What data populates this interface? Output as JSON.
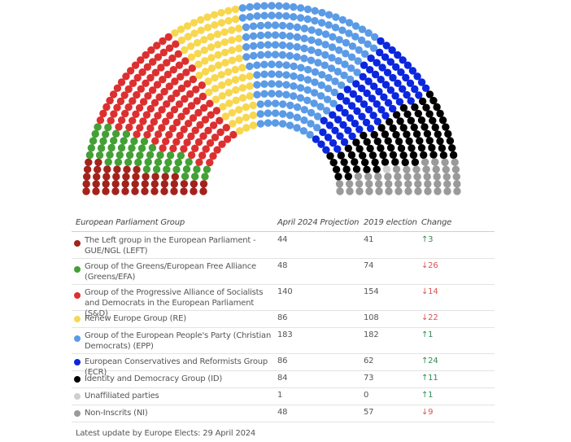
{
  "chart_data": {
    "type": "hemicycle",
    "total_seats": 720,
    "table": {
      "headers": {
        "group": "European Parliament Group",
        "projection": "April 2024 Projection",
        "election2019": "2019 election",
        "change": "Change"
      },
      "rows": [
        {
          "key": "left",
          "name": "The Left group in the European Parliament - GUE/NGL (LEFT)",
          "projection": 44,
          "e2019": 41,
          "change": "↑3",
          "dir": "up",
          "color": "#a3231c"
        },
        {
          "key": "greens",
          "name": "Group of the Greens/European Free Alliance (Greens/EFA)",
          "projection": 48,
          "e2019": 74,
          "change": "↓26",
          "dir": "down",
          "color": "#43a035"
        },
        {
          "key": "sd",
          "name": "Group of the Progressive Alliance of Socialists and Democrats in the European Parliament (S&D)",
          "projection": 140,
          "e2019": 154,
          "change": "↓14",
          "dir": "down",
          "color": "#dc3030"
        },
        {
          "key": "re",
          "name": "Renew Europe Group (RE)",
          "projection": 86,
          "e2019": 108,
          "change": "↓22",
          "dir": "down",
          "color": "#f7d750"
        },
        {
          "key": "epp",
          "name": "Group of the European People's Party (Christian Democrats) (EPP)",
          "projection": 183,
          "e2019": 182,
          "change": "↑1",
          "dir": "up",
          "color": "#5b9be6"
        },
        {
          "key": "ecr",
          "name": "European Conservatives and Reformists Group (ECR)",
          "projection": 86,
          "e2019": 62,
          "change": "↑24",
          "dir": "up",
          "color": "#0b27de"
        },
        {
          "key": "id",
          "name": "Identity and Democracy Group (ID)",
          "projection": 84,
          "e2019": 73,
          "change": "↑11",
          "dir": "up",
          "color": "#000000"
        },
        {
          "key": "unaff",
          "name": "Unaffiliated parties",
          "projection": 1,
          "e2019": 0,
          "change": "↑1",
          "dir": "up",
          "color": "#cfcfcf"
        },
        {
          "key": "ni",
          "name": "Non-Inscrits (NI)",
          "projection": 48,
          "e2019": 57,
          "change": "↓9",
          "dir": "down",
          "color": "#9a9a9a"
        }
      ]
    },
    "footer": "Latest update by Europe Elects: 29 April 2024"
  }
}
